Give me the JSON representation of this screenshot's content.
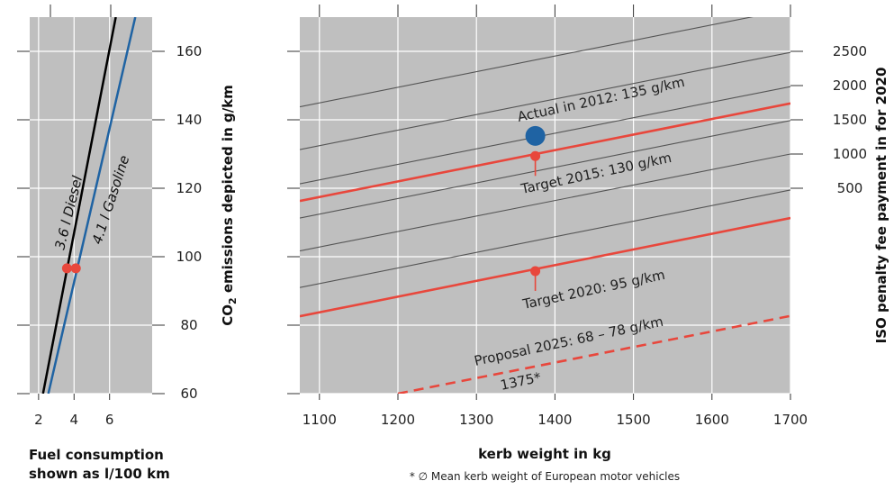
{
  "left_panel": {
    "xlabel_line1": "Fuel consumption",
    "xlabel_line2": "shown as l/100 km",
    "x_ticks": [
      "2",
      "4",
      "6"
    ]
  },
  "main_panel": {
    "ylabel": "CO₂ emissions depicted in g/km",
    "ylabel_main": "CO",
    "ylabel_sub": "2",
    "ylabel_rest": " emissions depicted in g/km",
    "y_ticks": [
      "60",
      "80",
      "100",
      "120",
      "140",
      "160"
    ],
    "x_ticks": [
      "1100",
      "1200",
      "1300",
      "1400",
      "1500",
      "1600",
      "1700"
    ],
    "xlabel": "kerb weight in kg",
    "right_label": "ISO penalty fee payment in for 2020",
    "right_ticks": [
      "2500",
      "2000",
      "1500",
      "1000",
      "500"
    ],
    "footnote": "* ∅ Mean kerb weight of European motor vehicles"
  },
  "annotations": {
    "actual": "Actual in 2012: 135 g/km",
    "target2015": "Target 2015: 130 g/km",
    "target2020": "Target 2020: 95 g/km",
    "proposal2025": "Proposal 2025: 68 – 78 g/km",
    "mean_weight": "1375*"
  },
  "colors": {
    "panel_bg": "#bfbfbf",
    "grid": "#ffffff",
    "red": "#e8473c",
    "blue": "#1f63a3",
    "dark_line": "#555555",
    "diesel": "#000000",
    "gasoline": "#1f63a3"
  },
  "chart_data": [
    {
      "type": "line",
      "title": "",
      "xlabel": "Fuel consumption shown as l/100 km",
      "ylabel": "CO₂ emissions depicted in g/km",
      "xlim": [
        1.5,
        8.4
      ],
      "ylim": [
        60,
        170
      ],
      "x_ticks": [
        2,
        4,
        6
      ],
      "series": [
        {
          "name": "3.6 l Diesel",
          "x": [
            2.25,
            6.35
          ],
          "y": [
            60,
            170
          ]
        },
        {
          "name": "4.1 l Gasoline",
          "x": [
            2.55,
            7.45
          ],
          "y": [
            60,
            170
          ]
        }
      ],
      "points": [
        {
          "x": 3.6,
          "y": 96.6
        },
        {
          "x": 4.1,
          "y": 96.6
        }
      ]
    },
    {
      "type": "line",
      "title": "",
      "xlabel": "kerb weight in kg",
      "ylabel": "CO₂ emissions depicted in g/km",
      "y2label": "ISO penalty fee payment in for 2020",
      "xlim": [
        1075,
        1700
      ],
      "ylim": [
        60,
        170
      ],
      "x_ticks": [
        1100,
        1200,
        1300,
        1400,
        1500,
        1600,
        1700
      ],
      "y_ticks": [
        60,
        80,
        100,
        120,
        140,
        160
      ],
      "y2_ticks": [
        {
          "label": "500",
          "y": 120
        },
        {
          "label": "1000",
          "y": 130
        },
        {
          "label": "1500",
          "y": 140
        },
        {
          "label": "2000",
          "y": 150
        },
        {
          "label": "2500",
          "y": 160
        }
      ],
      "series": [
        {
          "name": "Target 2015: 130 g/km",
          "x": [
            1075,
            1700
          ],
          "y": [
            116.3,
            144.8
          ]
        },
        {
          "name": "Target 2020: 95 g/km",
          "x": [
            1075,
            1700
          ],
          "y": [
            82.6,
            111.3
          ]
        },
        {
          "name": "Proposal 2025: 68 – 78 g/km",
          "x": [
            1200,
            1700
          ],
          "y": [
            60,
            82.7
          ],
          "dashed": true
        }
      ],
      "penalty_lines": [
        {
          "x": [
            1075,
            1700
          ],
          "y": [
            91.0,
            119.5
          ]
        },
        {
          "x": [
            1075,
            1700
          ],
          "y": [
            101.7,
            130.0
          ]
        },
        {
          "x": [
            1075,
            1700
          ],
          "y": [
            111.3,
            139.8
          ]
        },
        {
          "x": [
            1075,
            1700
          ],
          "y": [
            121.3,
            149.7
          ]
        },
        {
          "x": [
            1075,
            1700
          ],
          "y": [
            131.3,
            159.7
          ]
        },
        {
          "x": [
            1075,
            1700
          ],
          "y": [
            143.8,
            172.3
          ]
        }
      ],
      "points": [
        {
          "label": "Actual in 2012: 135 g/km",
          "x": 1375,
          "y": 135.3,
          "marker": "large-circle"
        },
        {
          "label": "Target 2015: 130 g/km",
          "x": 1375,
          "y": 129.4
        },
        {
          "label": "Target 2020: 95 g/km",
          "x": 1375,
          "y": 95.8
        }
      ],
      "vertical_ref": {
        "x": 1375,
        "label": "1375*"
      }
    }
  ]
}
